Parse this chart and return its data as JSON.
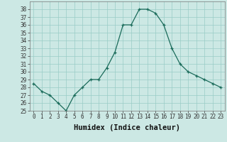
{
  "x": [
    0,
    1,
    2,
    3,
    4,
    5,
    6,
    7,
    8,
    9,
    10,
    11,
    12,
    13,
    14,
    15,
    16,
    17,
    18,
    19,
    20,
    21,
    22,
    23
  ],
  "y": [
    28.5,
    27.5,
    27.0,
    26.0,
    25.0,
    27.0,
    28.0,
    29.0,
    29.0,
    30.5,
    32.5,
    36.0,
    36.0,
    38.0,
    38.0,
    37.5,
    36.0,
    33.0,
    31.0,
    30.0,
    29.5,
    29.0,
    28.5,
    28.0
  ],
  "xlabel": "Humidex (Indice chaleur)",
  "ylim": [
    25,
    39
  ],
  "xlim": [
    -0.5,
    23.5
  ],
  "yticks": [
    25,
    26,
    27,
    28,
    29,
    30,
    31,
    32,
    33,
    34,
    35,
    36,
    37,
    38
  ],
  "xticks": [
    0,
    1,
    2,
    3,
    4,
    5,
    6,
    7,
    8,
    9,
    10,
    11,
    12,
    13,
    14,
    15,
    16,
    17,
    18,
    19,
    20,
    21,
    22,
    23
  ],
  "line_color": "#1a6b5a",
  "marker": "+",
  "bg_color": "#cce8e4",
  "grid_color": "#99ccc6",
  "tick_label_fontsize": 5.5,
  "xlabel_fontsize": 7.5
}
